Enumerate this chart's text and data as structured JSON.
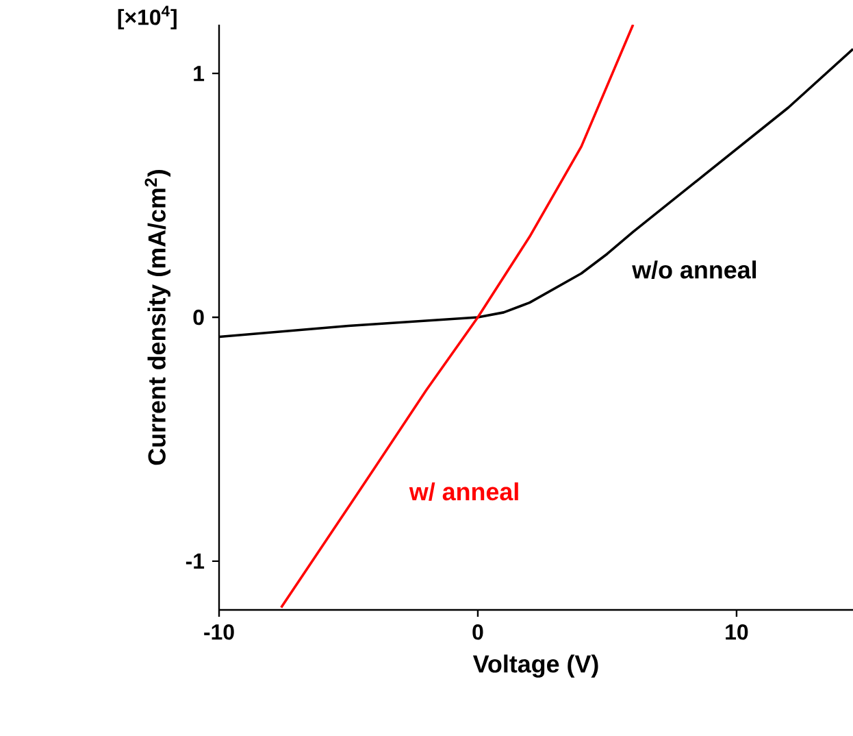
{
  "chart_data": {
    "type": "line",
    "xlabel": "Voltage (V)",
    "ylabel": "Current density (mA/cm$^{2}$)",
    "annotations": [
      "[×10$^{4}$]"
    ],
    "xlim": [
      -10,
      14.5
    ],
    "ylim": [
      -1.2,
      1.2
    ],
    "xticks": [
      -10,
      0,
      10
    ],
    "yticks": [
      -1,
      0,
      1
    ],
    "grid": false,
    "legend": false,
    "marker": "none",
    "line_style": "solid",
    "series": [
      {
        "name": "w/o anneal",
        "color": "#000000",
        "x": [
          -10,
          -5,
          0,
          1,
          2,
          3,
          4,
          5,
          6,
          8,
          10,
          12,
          14.5
        ],
        "values": [
          -0.08,
          -0.035,
          0,
          0.02,
          0.06,
          0.12,
          0.18,
          0.26,
          0.35,
          0.52,
          0.69,
          0.86,
          1.1
        ]
      },
      {
        "name": "w/ anneal",
        "color": "#ff0000",
        "x": [
          -7.6,
          -4,
          -2,
          0,
          2,
          4,
          5,
          6
        ],
        "values": [
          -1.19,
          -0.62,
          -0.3,
          0,
          0.33,
          0.7,
          0.95,
          1.2
        ]
      }
    ]
  }
}
